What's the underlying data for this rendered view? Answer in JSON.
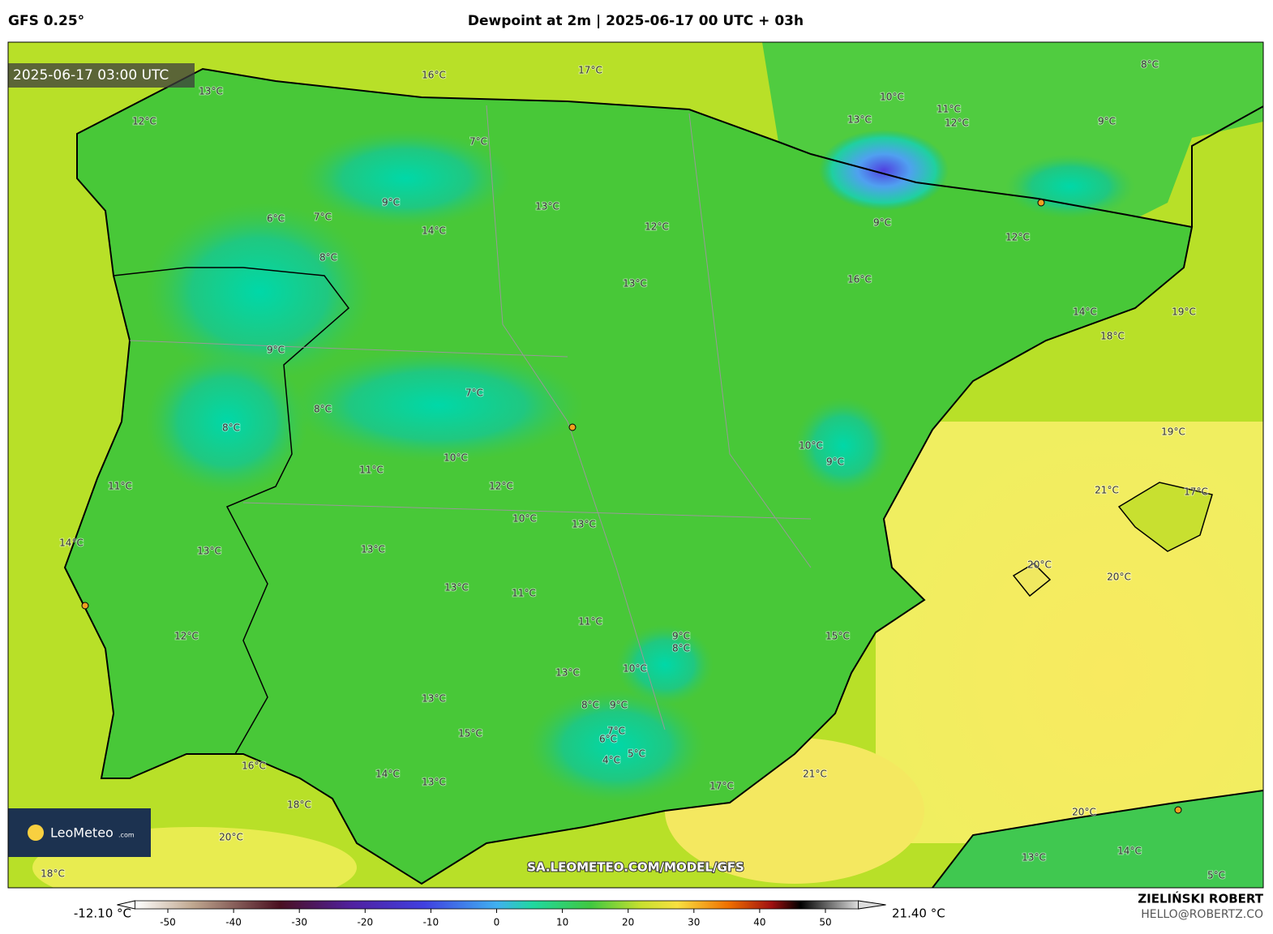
{
  "header": {
    "model": "GFS 0.25°",
    "title": "Dewpoint at 2m | 2025-06-17 00 UTC + 03h"
  },
  "map": {
    "timestamp": "2025-06-17 03:00 UTC",
    "watermark": "SA.LEOMETEO.COM/MODEL/GFS",
    "logo": {
      "brand": "LeoMeteo",
      "suffix": ".com"
    },
    "contour_labels": [
      "16°C",
      "17°C",
      "13°C",
      "12°C",
      "10°C",
      "11°C",
      "12°C",
      "8°C",
      "9°C",
      "7°C",
      "9°C",
      "6°C",
      "7°C",
      "8°C",
      "14°C",
      "13°C",
      "12°C",
      "13°C",
      "13°C",
      "9°C",
      "12°C",
      "16°C",
      "14°C",
      "19°C",
      "18°C",
      "9°C",
      "7°C",
      "8°C",
      "8°C",
      "10°C",
      "11°C",
      "11°C",
      "12°C",
      "10°C",
      "9°C",
      "19°C",
      "21°C",
      "17°C",
      "10°C",
      "13°C",
      "13°C",
      "13°C",
      "14°C",
      "20°C",
      "20°C",
      "13°C",
      "11°C",
      "11°C",
      "12°C",
      "15°C",
      "9°C",
      "8°C",
      "10°C",
      "13°C",
      "13°C",
      "8°C",
      "9°C",
      "15°C",
      "7°C",
      "6°C",
      "4°C",
      "5°C",
      "16°C",
      "14°C",
      "17°C",
      "21°C",
      "18°C",
      "13°C",
      "20°C",
      "18°C",
      "20°C",
      "14°C",
      "13°C",
      "5°C"
    ]
  },
  "colorbar": {
    "min_label": "-12.10 °C",
    "max_label": "21.40 °C",
    "xlim": [
      -55,
      55
    ],
    "xticks": [
      -50,
      -40,
      -30,
      -20,
      -10,
      0,
      10,
      20,
      30,
      40,
      50
    ]
  },
  "footer": {
    "author": "ZIELIŃSKI ROBERT",
    "email": "HELLO@ROBERTZ.CO"
  }
}
